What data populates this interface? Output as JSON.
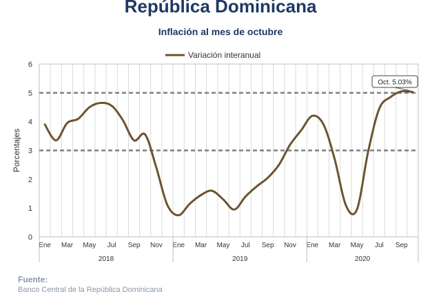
{
  "header": {
    "title": "República Dominicana",
    "subtitle": "Inflación al mes de octubre"
  },
  "source": {
    "label": "Fuente:",
    "text": "Banco Central de la República Dominicana"
  },
  "chart_data": {
    "type": "line",
    "ylabel": "Porcentajes",
    "ylim": [
      0,
      6
    ],
    "yticks": [
      0,
      1,
      2,
      3,
      4,
      5,
      6
    ],
    "grid": "vertical",
    "legend_position": "top-center",
    "series": [
      {
        "name": "Variación interanual",
        "color": "#6b5430",
        "values": [
          3.9,
          3.35,
          3.95,
          4.1,
          4.5,
          4.65,
          4.55,
          4.05,
          3.35,
          3.55,
          2.4,
          1.1,
          0.75,
          1.15,
          1.45,
          1.6,
          1.3,
          0.95,
          1.4,
          1.75,
          2.05,
          2.5,
          3.2,
          3.7,
          4.2,
          3.9,
          2.7,
          1.1,
          0.95,
          2.95,
          4.45,
          4.85,
          5.05,
          5.03
        ]
      }
    ],
    "month_labels": [
      "Ene",
      "Mar",
      "May",
      "Jul",
      "Sep",
      "Nov",
      "Ene",
      "Mar",
      "May",
      "Jul",
      "Sep",
      "Nov",
      "Ene",
      "Mar",
      "May",
      "Jul",
      "Sep"
    ],
    "month_label_index": [
      0,
      2,
      4,
      6,
      8,
      10,
      12,
      14,
      16,
      18,
      20,
      22,
      24,
      26,
      28,
      30,
      32
    ],
    "years": [
      {
        "label": "2018",
        "start": 0,
        "end": 11
      },
      {
        "label": "2019",
        "start": 12,
        "end": 23
      },
      {
        "label": "2020",
        "start": 24,
        "end": 33
      }
    ],
    "reference_lines": [
      3,
      5
    ],
    "annotation": {
      "text": "Oct. 5.03%",
      "index": 33
    }
  }
}
